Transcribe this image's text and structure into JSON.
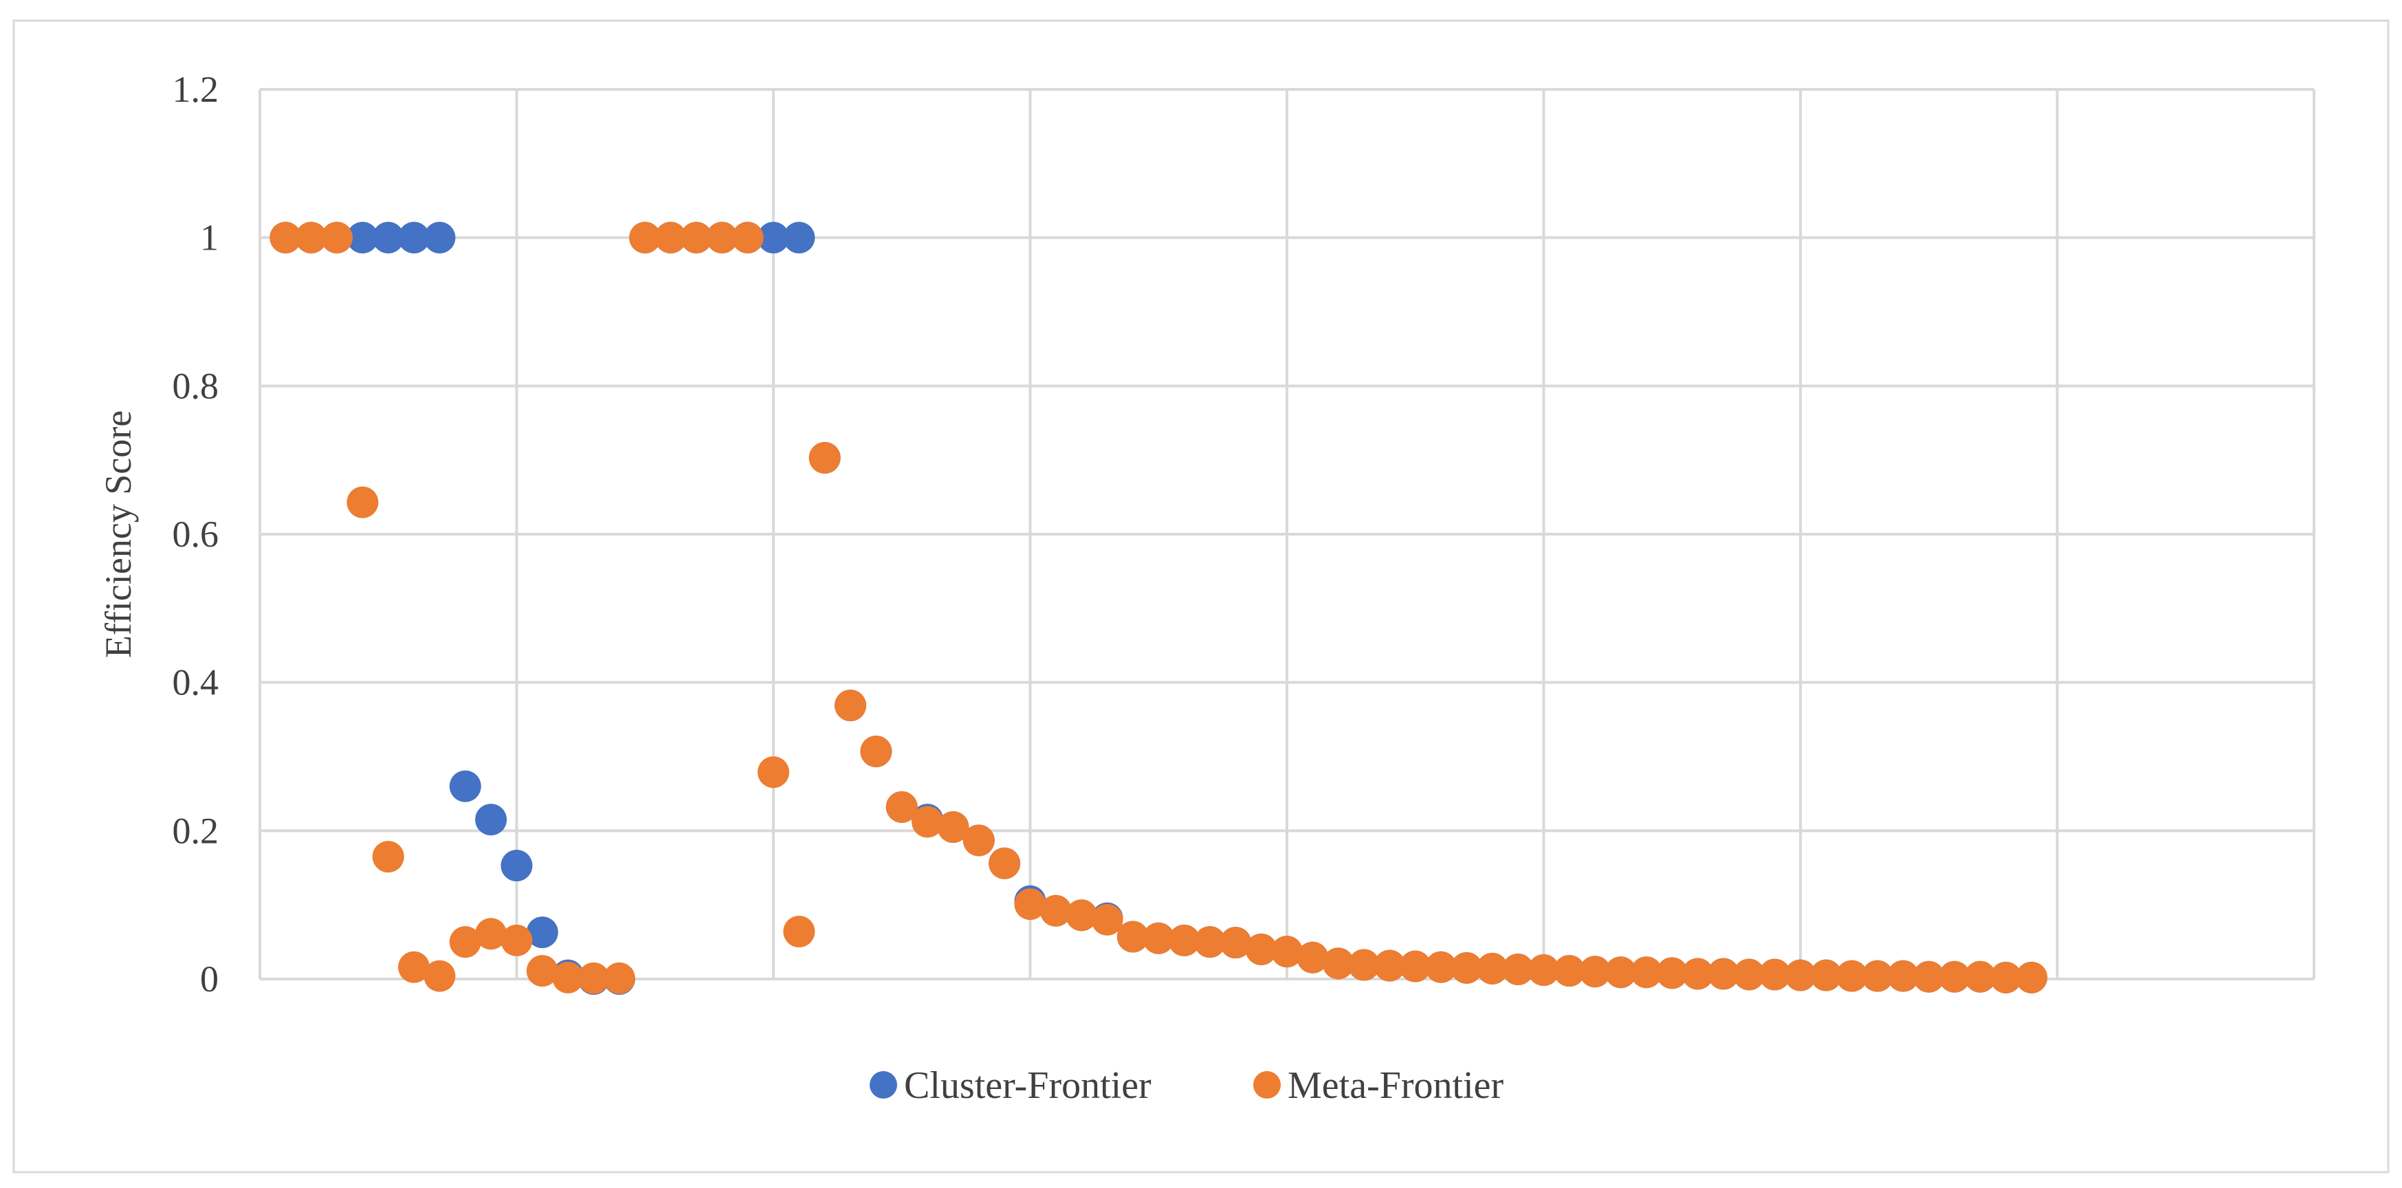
{
  "chart_data": {
    "type": "scatter",
    "title": "",
    "xlabel": "",
    "ylabel": "Efficiency Score",
    "ylim": [
      0,
      1.2
    ],
    "yticks": [
      0,
      0.2,
      0.4,
      0.6,
      0.8,
      1,
      1.2
    ],
    "ytick_labels": [
      "0",
      "0.2",
      "0.4",
      "0.6",
      "0.8",
      "1",
      "1.2"
    ],
    "xlim": [
      0,
      80
    ],
    "grid": true,
    "legend": "bottom",
    "colors": {
      "Cluster-Frontier": "#4472C4",
      "Meta-Frontier": "#ED7D31"
    },
    "series": [
      {
        "name": "Cluster-Frontier",
        "x": [
          1,
          2,
          3,
          4,
          5,
          6,
          7,
          8,
          9,
          10,
          11,
          12,
          13,
          14,
          15,
          16,
          17,
          18,
          19,
          20,
          21,
          22,
          23,
          24,
          25,
          26,
          27,
          28,
          29,
          30,
          31,
          32,
          33,
          34,
          35,
          36,
          37,
          38,
          39,
          40,
          41,
          42,
          43,
          44,
          45,
          46,
          47,
          48,
          49,
          50,
          51,
          52,
          53,
          54,
          55,
          56,
          57,
          58,
          59,
          60,
          61,
          62,
          63,
          64,
          65,
          66,
          67,
          68,
          69
        ],
        "y": [
          1,
          1,
          1,
          1,
          1,
          1,
          1,
          0.26,
          0.215,
          0.153,
          0.063,
          0.005,
          0,
          0,
          1,
          1,
          1,
          1,
          1,
          1,
          1,
          0.703,
          0.369,
          0.307,
          0.232,
          0.215,
          0.205,
          0.187,
          0.156,
          0.105,
          0.092,
          0.086,
          0.082,
          0.057,
          0.055,
          0.052,
          0.05,
          0.049,
          0.04,
          0.037,
          0.029,
          0.021,
          0.019,
          0.018,
          0.017,
          0.016,
          0.015,
          0.014,
          0.013,
          0.012,
          0.011,
          0.01,
          0.009,
          0.009,
          0.008,
          0.007,
          0.007,
          0.006,
          0.006,
          0.005,
          0.005,
          0.004,
          0.004,
          0.004,
          0.003,
          0.003,
          0.003,
          0.002,
          0.002
        ]
      },
      {
        "name": "Meta-Frontier",
        "x": [
          1,
          2,
          3,
          4,
          5,
          6,
          7,
          8,
          9,
          10,
          11,
          12,
          13,
          14,
          15,
          16,
          17,
          18,
          19,
          20,
          21,
          22,
          23,
          24,
          25,
          26,
          27,
          28,
          29,
          30,
          31,
          32,
          33,
          34,
          35,
          36,
          37,
          38,
          39,
          40,
          41,
          42,
          43,
          44,
          45,
          46,
          47,
          48,
          49,
          50,
          51,
          52,
          53,
          54,
          55,
          56,
          57,
          58,
          59,
          60,
          61,
          62,
          63,
          64,
          65,
          66,
          67,
          68,
          69
        ],
        "y": [
          1,
          1,
          1,
          0.643,
          0.165,
          0.016,
          0.004,
          0.05,
          0.061,
          0.052,
          0.011,
          0.002,
          0.001,
          0.001,
          1,
          1,
          1,
          1,
          1,
          0.279,
          0.064,
          0.703,
          0.369,
          0.307,
          0.232,
          0.212,
          0.205,
          0.187,
          0.156,
          0.101,
          0.092,
          0.086,
          0.08,
          0.057,
          0.055,
          0.052,
          0.05,
          0.049,
          0.04,
          0.037,
          0.029,
          0.021,
          0.019,
          0.018,
          0.017,
          0.016,
          0.015,
          0.014,
          0.013,
          0.012,
          0.011,
          0.01,
          0.009,
          0.009,
          0.008,
          0.007,
          0.007,
          0.006,
          0.006,
          0.005,
          0.005,
          0.004,
          0.004,
          0.004,
          0.003,
          0.003,
          0.003,
          0.002,
          0.002
        ]
      }
    ]
  }
}
